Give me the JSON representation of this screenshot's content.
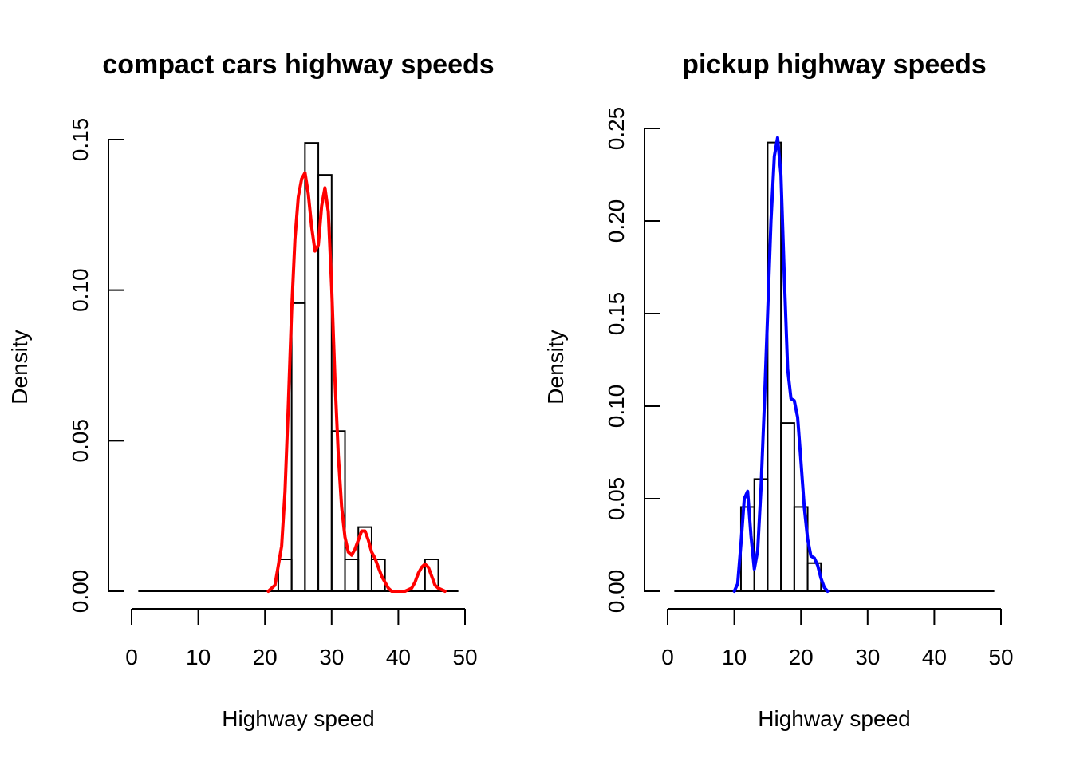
{
  "chart_data": [
    {
      "type": "bar",
      "title": "compact cars highway speeds",
      "xlabel": "Highway speed",
      "ylabel": "Density",
      "xlim": [
        0,
        50
      ],
      "ylim": [
        0,
        0.15
      ],
      "xticks": [
        "0",
        "10",
        "20",
        "30",
        "40",
        "50"
      ],
      "yticks": [
        "0.00",
        "0.05",
        "0.10",
        "0.15"
      ],
      "bins": [
        {
          "x0": 22,
          "x1": 24,
          "density": 0.0106
        },
        {
          "x0": 24,
          "x1": 26,
          "density": 0.0957
        },
        {
          "x0": 26,
          "x1": 28,
          "density": 0.1489
        },
        {
          "x0": 28,
          "x1": 30,
          "density": 0.1383
        },
        {
          "x0": 30,
          "x1": 32,
          "density": 0.0532
        },
        {
          "x0": 32,
          "x1": 34,
          "density": 0.0106
        },
        {
          "x0": 34,
          "x1": 36,
          "density": 0.0213
        },
        {
          "x0": 36,
          "x1": 38,
          "density": 0.0106
        },
        {
          "x0": 38,
          "x1": 40,
          "density": 0.0
        },
        {
          "x0": 40,
          "x1": 42,
          "density": 0.0
        },
        {
          "x0": 42,
          "x1": 44,
          "density": 0.0
        },
        {
          "x0": 44,
          "x1": 46,
          "density": 0.0106
        }
      ],
      "baseline": [
        1,
        49
      ],
      "density_curve": {
        "color": "#ff0000",
        "x": [
          20.5,
          21.5,
          22.5,
          23,
          23.5,
          24,
          24.5,
          25,
          25.5,
          26,
          26.5,
          27,
          27.5,
          28,
          28.5,
          29,
          29.5,
          30,
          30.5,
          31,
          31.5,
          32,
          32.5,
          33,
          33.5,
          34,
          34.5,
          35,
          35.5,
          36,
          36.5,
          37,
          37.5,
          38,
          38.5,
          39,
          39.5,
          40,
          41,
          42,
          42.5,
          43,
          43.5,
          44,
          44.5,
          45,
          45.5,
          46,
          47
        ],
        "y": [
          0.0,
          0.002,
          0.015,
          0.033,
          0.062,
          0.093,
          0.117,
          0.131,
          0.137,
          0.139,
          0.132,
          0.121,
          0.113,
          0.115,
          0.128,
          0.134,
          0.126,
          0.101,
          0.07,
          0.045,
          0.028,
          0.018,
          0.013,
          0.012,
          0.014,
          0.017,
          0.02,
          0.02,
          0.017,
          0.013,
          0.011,
          0.008,
          0.005,
          0.003,
          0.001,
          0.0,
          0.0,
          0.0,
          0.0,
          0.001,
          0.003,
          0.006,
          0.008,
          0.009,
          0.008,
          0.005,
          0.002,
          0.001,
          0.0
        ]
      }
    },
    {
      "type": "bar",
      "title": "pickup highway speeds",
      "xlabel": "Highway speed",
      "ylabel": "Density",
      "xlim": [
        0,
        50
      ],
      "ylim": [
        0,
        0.25
      ],
      "xticks": [
        "0",
        "10",
        "20",
        "30",
        "40",
        "50"
      ],
      "yticks": [
        "0.00",
        "0.05",
        "0.10",
        "0.15",
        "0.20",
        "0.25"
      ],
      "bins": [
        {
          "x0": 11,
          "x1": 13,
          "density": 0.0455
        },
        {
          "x0": 13,
          "x1": 15,
          "density": 0.0606
        },
        {
          "x0": 15,
          "x1": 17,
          "density": 0.2424
        },
        {
          "x0": 17,
          "x1": 19,
          "density": 0.0909
        },
        {
          "x0": 19,
          "x1": 21,
          "density": 0.0455
        },
        {
          "x0": 21,
          "x1": 23,
          "density": 0.0152
        }
      ],
      "baseline": [
        1,
        49
      ],
      "density_curve": {
        "color": "#0000ff",
        "x": [
          10,
          10.5,
          11,
          11.5,
          12,
          12.5,
          13,
          13.5,
          14,
          14.5,
          15,
          15.5,
          16,
          16.5,
          17,
          17.5,
          18,
          18.5,
          19,
          19.5,
          20,
          20.5,
          21,
          21.5,
          22,
          22.5,
          23,
          23.5,
          24
        ],
        "y": [
          0.0,
          0.004,
          0.026,
          0.05,
          0.054,
          0.03,
          0.012,
          0.022,
          0.055,
          0.1,
          0.15,
          0.2,
          0.235,
          0.245,
          0.225,
          0.17,
          0.12,
          0.104,
          0.103,
          0.094,
          0.07,
          0.045,
          0.028,
          0.019,
          0.018,
          0.014,
          0.007,
          0.002,
          0.0
        ]
      }
    }
  ]
}
